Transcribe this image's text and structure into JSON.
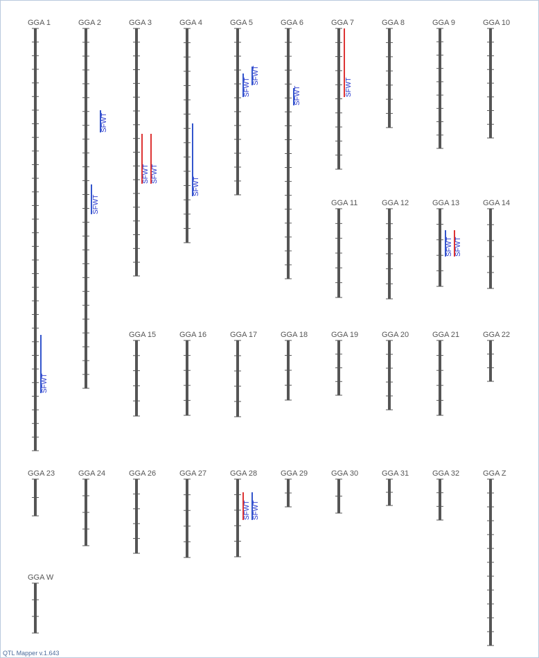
{
  "footer": "QTL Mapper v.1.643",
  "colors": {
    "chromosome": "#555555",
    "tick": "#555555",
    "qtl_blue": "#3355cc",
    "qtl_red": "#dd3333",
    "label": "#555555",
    "qtl_text": "#2233cc"
  },
  "chromosomes": [
    {
      "name": "GGA 1",
      "ticks": 31
    },
    {
      "name": "GGA 2",
      "ticks": 26
    },
    {
      "name": "GGA 3",
      "ticks": 18
    },
    {
      "name": "GGA 4",
      "ticks": 15
    },
    {
      "name": "GGA 5",
      "ticks": 12
    },
    {
      "name": "GGA 6",
      "ticks": 18
    },
    {
      "name": "GGA 7",
      "ticks": 10
    },
    {
      "name": "GGA 8",
      "ticks": 7
    },
    {
      "name": "GGA 9",
      "ticks": 9
    },
    {
      "name": "GGA 10",
      "ticks": 8
    },
    {
      "name": "GGA 11",
      "ticks": 6
    },
    {
      "name": "GGA 12",
      "ticks": 6
    },
    {
      "name": "GGA 13",
      "ticks": 5
    },
    {
      "name": "GGA 14",
      "ticks": 5
    },
    {
      "name": "GGA 15",
      "ticks": 5
    },
    {
      "name": "GGA 16",
      "ticks": 5
    },
    {
      "name": "GGA 17",
      "ticks": 5
    },
    {
      "name": "GGA 18",
      "ticks": 4
    },
    {
      "name": "GGA 19",
      "ticks": 4
    },
    {
      "name": "GGA 20",
      "ticks": 5
    },
    {
      "name": "GGA 21",
      "ticks": 5
    },
    {
      "name": "GGA 22",
      "ticks": 3
    },
    {
      "name": "GGA 23",
      "ticks": 2
    },
    {
      "name": "GGA 24",
      "ticks": 4
    },
    {
      "name": "GGA 26",
      "ticks": 5
    },
    {
      "name": "GGA 27",
      "ticks": 5
    },
    {
      "name": "GGA 28",
      "ticks": 5
    },
    {
      "name": "GGA 29",
      "ticks": 2
    },
    {
      "name": "GGA 30",
      "ticks": 2
    },
    {
      "name": "GGA 31",
      "ticks": 2
    },
    {
      "name": "GGA 32",
      "ticks": 3
    },
    {
      "name": "GGA Z",
      "ticks": 12
    },
    {
      "name": "GGA W",
      "ticks": 3
    }
  ],
  "qtls": [
    {
      "chromosome": "GGA 1",
      "label": "SFWT",
      "color": "blue"
    },
    {
      "chromosome": "GGA 2",
      "label": "SFWT",
      "color": "blue"
    },
    {
      "chromosome": "GGA 2",
      "label": "SFWT",
      "color": "blue"
    },
    {
      "chromosome": "GGA 3",
      "label": "SFWT",
      "color": "red"
    },
    {
      "chromosome": "GGA 3",
      "label": "SFWT",
      "color": "red"
    },
    {
      "chromosome": "GGA 4",
      "label": "SFWT",
      "color": "blue"
    },
    {
      "chromosome": "GGA 5",
      "label": "SFWT",
      "color": "blue"
    },
    {
      "chromosome": "GGA 5",
      "label": "SFWT",
      "color": "blue"
    },
    {
      "chromosome": "GGA 6",
      "label": "SFWT",
      "color": "blue"
    },
    {
      "chromosome": "GGA 7",
      "label": "SFWT",
      "color": "red"
    },
    {
      "chromosome": "GGA 13",
      "label": "SFWT",
      "color": "blue"
    },
    {
      "chromosome": "GGA 13",
      "label": "SFWT",
      "color": "red"
    },
    {
      "chromosome": "GGA 28",
      "label": "SFWT",
      "color": "red"
    },
    {
      "chromosome": "GGA 28",
      "label": "SFWT",
      "color": "blue"
    }
  ]
}
